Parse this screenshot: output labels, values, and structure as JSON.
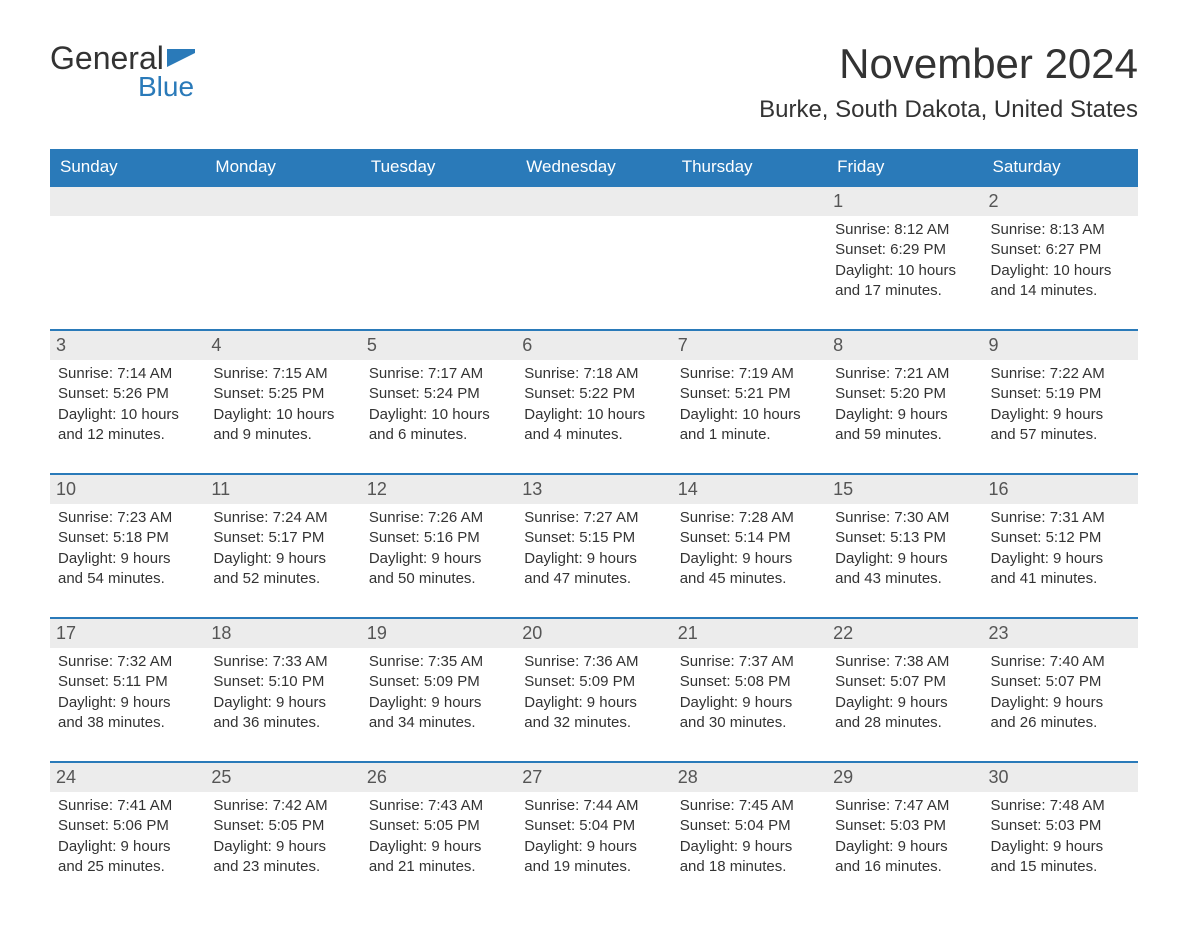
{
  "logo": {
    "text_top": "General",
    "text_bottom": "Blue",
    "flag_color": "#2a7ab9"
  },
  "title": "November 2024",
  "location": "Burke, South Dakota, United States",
  "colors": {
    "header_bg": "#2a7ab9",
    "header_text": "#ffffff",
    "day_number_bg": "#ececec",
    "border": "#2a7ab9",
    "text": "#333333",
    "logo_accent": "#2a7ab9"
  },
  "typography": {
    "title_fontsize": 42,
    "location_fontsize": 24,
    "header_fontsize": 17,
    "daynum_fontsize": 18,
    "body_fontsize": 15
  },
  "day_headers": [
    "Sunday",
    "Monday",
    "Tuesday",
    "Wednesday",
    "Thursday",
    "Friday",
    "Saturday"
  ],
  "weeks": [
    [
      null,
      null,
      null,
      null,
      null,
      {
        "n": "1",
        "sunrise": "8:12 AM",
        "sunset": "6:29 PM",
        "daylight": "10 hours and 17 minutes."
      },
      {
        "n": "2",
        "sunrise": "8:13 AM",
        "sunset": "6:27 PM",
        "daylight": "10 hours and 14 minutes."
      }
    ],
    [
      {
        "n": "3",
        "sunrise": "7:14 AM",
        "sunset": "5:26 PM",
        "daylight": "10 hours and 12 minutes."
      },
      {
        "n": "4",
        "sunrise": "7:15 AM",
        "sunset": "5:25 PM",
        "daylight": "10 hours and 9 minutes."
      },
      {
        "n": "5",
        "sunrise": "7:17 AM",
        "sunset": "5:24 PM",
        "daylight": "10 hours and 6 minutes."
      },
      {
        "n": "6",
        "sunrise": "7:18 AM",
        "sunset": "5:22 PM",
        "daylight": "10 hours and 4 minutes."
      },
      {
        "n": "7",
        "sunrise": "7:19 AM",
        "sunset": "5:21 PM",
        "daylight": "10 hours and 1 minute."
      },
      {
        "n": "8",
        "sunrise": "7:21 AM",
        "sunset": "5:20 PM",
        "daylight": "9 hours and 59 minutes."
      },
      {
        "n": "9",
        "sunrise": "7:22 AM",
        "sunset": "5:19 PM",
        "daylight": "9 hours and 57 minutes."
      }
    ],
    [
      {
        "n": "10",
        "sunrise": "7:23 AM",
        "sunset": "5:18 PM",
        "daylight": "9 hours and 54 minutes."
      },
      {
        "n": "11",
        "sunrise": "7:24 AM",
        "sunset": "5:17 PM",
        "daylight": "9 hours and 52 minutes."
      },
      {
        "n": "12",
        "sunrise": "7:26 AM",
        "sunset": "5:16 PM",
        "daylight": "9 hours and 50 minutes."
      },
      {
        "n": "13",
        "sunrise": "7:27 AM",
        "sunset": "5:15 PM",
        "daylight": "9 hours and 47 minutes."
      },
      {
        "n": "14",
        "sunrise": "7:28 AM",
        "sunset": "5:14 PM",
        "daylight": "9 hours and 45 minutes."
      },
      {
        "n": "15",
        "sunrise": "7:30 AM",
        "sunset": "5:13 PM",
        "daylight": "9 hours and 43 minutes."
      },
      {
        "n": "16",
        "sunrise": "7:31 AM",
        "sunset": "5:12 PM",
        "daylight": "9 hours and 41 minutes."
      }
    ],
    [
      {
        "n": "17",
        "sunrise": "7:32 AM",
        "sunset": "5:11 PM",
        "daylight": "9 hours and 38 minutes."
      },
      {
        "n": "18",
        "sunrise": "7:33 AM",
        "sunset": "5:10 PM",
        "daylight": "9 hours and 36 minutes."
      },
      {
        "n": "19",
        "sunrise": "7:35 AM",
        "sunset": "5:09 PM",
        "daylight": "9 hours and 34 minutes."
      },
      {
        "n": "20",
        "sunrise": "7:36 AM",
        "sunset": "5:09 PM",
        "daylight": "9 hours and 32 minutes."
      },
      {
        "n": "21",
        "sunrise": "7:37 AM",
        "sunset": "5:08 PM",
        "daylight": "9 hours and 30 minutes."
      },
      {
        "n": "22",
        "sunrise": "7:38 AM",
        "sunset": "5:07 PM",
        "daylight": "9 hours and 28 minutes."
      },
      {
        "n": "23",
        "sunrise": "7:40 AM",
        "sunset": "5:07 PM",
        "daylight": "9 hours and 26 minutes."
      }
    ],
    [
      {
        "n": "24",
        "sunrise": "7:41 AM",
        "sunset": "5:06 PM",
        "daylight": "9 hours and 25 minutes."
      },
      {
        "n": "25",
        "sunrise": "7:42 AM",
        "sunset": "5:05 PM",
        "daylight": "9 hours and 23 minutes."
      },
      {
        "n": "26",
        "sunrise": "7:43 AM",
        "sunset": "5:05 PM",
        "daylight": "9 hours and 21 minutes."
      },
      {
        "n": "27",
        "sunrise": "7:44 AM",
        "sunset": "5:04 PM",
        "daylight": "9 hours and 19 minutes."
      },
      {
        "n": "28",
        "sunrise": "7:45 AM",
        "sunset": "5:04 PM",
        "daylight": "9 hours and 18 minutes."
      },
      {
        "n": "29",
        "sunrise": "7:47 AM",
        "sunset": "5:03 PM",
        "daylight": "9 hours and 16 minutes."
      },
      {
        "n": "30",
        "sunrise": "7:48 AM",
        "sunset": "5:03 PM",
        "daylight": "9 hours and 15 minutes."
      }
    ]
  ],
  "labels": {
    "sunrise": "Sunrise:",
    "sunset": "Sunset:",
    "daylight": "Daylight:"
  }
}
